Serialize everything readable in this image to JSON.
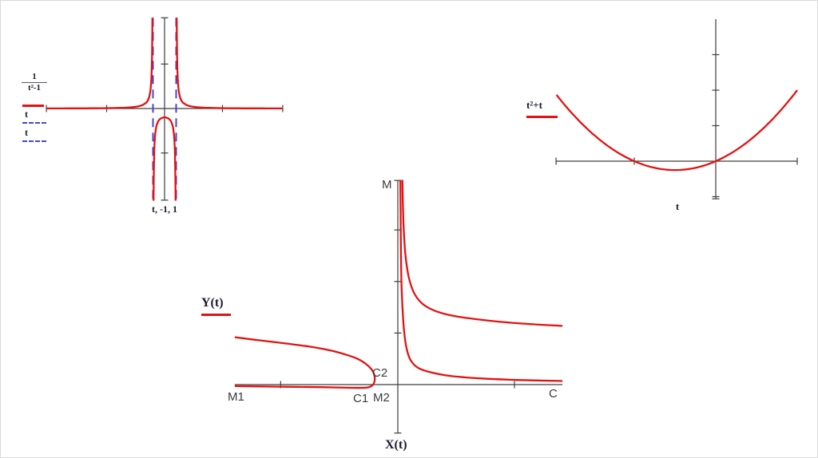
{
  "colors": {
    "curve": "#e31212",
    "asymptote": "#4646cc",
    "axis": "#3d3d3d",
    "math_label": "#1b1b2f",
    "marker_label": "#3a3a3a"
  },
  "plots": {
    "hyperbola": {
      "legend": {
        "numerator": "1",
        "denominator": "t²-1",
        "entry2": "t",
        "entry3": "t"
      },
      "xlabel": "t, -1, 1"
    },
    "parabola": {
      "legend": "t²+t",
      "xlabel": "t"
    },
    "parametric": {
      "legend": "Y(t)",
      "xlabel": "X(t)",
      "markers": {
        "m": "M",
        "m1": "M1",
        "m2": "M2",
        "c": "C",
        "c1": "C1",
        "c2": "C2"
      }
    }
  },
  "chart_data": [
    {
      "id": "hyperbola",
      "type": "line",
      "function": "y = 1/(t²-1)",
      "x_axis_label": "t, -1, 1",
      "x_range": [
        -10.2,
        10.2
      ],
      "y_range": [
        -10.3,
        10.2
      ],
      "x_ticks": [
        -5,
        5
      ],
      "y_ticks": [
        -5,
        5
      ],
      "vertical_asymptotes": [
        -1,
        1
      ],
      "series": [
        {
          "name": "1/(t²-1)",
          "color": "#e31212",
          "style": "solid"
        },
        {
          "name": "t",
          "color": "#4646cc",
          "style": "dashed"
        },
        {
          "name": "t",
          "color": "#4646cc",
          "style": "dashed"
        }
      ],
      "segments": [
        [
          [
            -10.2,
            -1.6,
            30
          ],
          [
            -1.6,
            -1.0478,
            60
          ]
        ],
        [
          [
            -0.9505,
            -0.7,
            40
          ],
          [
            -0.7,
            0.7,
            40
          ],
          [
            0.7,
            0.9505,
            40
          ]
        ],
        [
          [
            1.0478,
            1.6,
            60
          ],
          [
            1.6,
            10.2,
            30
          ]
        ]
      ],
      "grid": false,
      "legend_position": "left"
    },
    {
      "id": "parabola",
      "type": "line",
      "function": "y = t²+t",
      "x_axis_label": "t",
      "x_range": [
        -1.96,
        1.0
      ],
      "y_range": [
        -1.06,
        4.0
      ],
      "x_ticks": [
        -1
      ],
      "y_ticks": [
        -1,
        1,
        2,
        3
      ],
      "roots": [
        -1,
        0
      ],
      "vertex": [
        -0.5,
        -0.25
      ],
      "series": [
        {
          "name": "t²+t",
          "color": "#e31212",
          "style": "solid"
        }
      ],
      "segments": [
        [
          [
            -1.955,
            1.0,
            80
          ]
        ]
      ],
      "grid": false,
      "legend_position": "left"
    },
    {
      "id": "parametric",
      "type": "line",
      "function": "parametric curve (X(t), Y(t))",
      "x_axis_label": "X(t)",
      "y_axis_label": "Y(t)",
      "x_range": [
        -3.16,
        3.19
      ],
      "y_range": [
        -0.94,
        3.96
      ],
      "x_ticks": [
        -2.27,
        2.26
      ],
      "y_ticks": [
        1,
        2,
        3
      ],
      "series": [
        {
          "name": "Y(t)",
          "color": "#e31212",
          "style": "solid"
        }
      ],
      "annotations": [
        "M",
        "M1",
        "M2",
        "C",
        "C1",
        "C2"
      ],
      "branches": [
        {
          "name": "left-loop",
          "points": [
            [
              -3.16,
              -0.03
            ],
            [
              -2.28,
              -0.04
            ],
            [
              -1.5,
              -0.05
            ],
            [
              -0.99,
              -0.06
            ],
            [
              -0.62,
              -0.06
            ],
            [
              -0.5,
              -0.02
            ],
            [
              -0.455,
              0.05
            ],
            [
              -0.448,
              0.14
            ],
            [
              -0.47,
              0.23
            ],
            [
              -0.53,
              0.32
            ],
            [
              -0.63,
              0.41
            ],
            [
              -0.78,
              0.5
            ],
            [
              -0.97,
              0.57
            ],
            [
              -1.25,
              0.65
            ],
            [
              -1.6,
              0.72
            ],
            [
              -2.1,
              0.79
            ],
            [
              -2.7,
              0.86
            ],
            [
              -3.16,
              0.92
            ]
          ]
        },
        {
          "name": "right-upper",
          "points": [
            [
              0.09,
              3.97
            ],
            [
              0.1,
              3.4
            ],
            [
              0.12,
              2.9
            ],
            [
              0.155,
              2.45
            ],
            [
              0.22,
              2.05
            ],
            [
              0.33,
              1.75
            ],
            [
              0.5,
              1.55
            ],
            [
              0.75,
              1.42
            ],
            [
              1.1,
              1.33
            ],
            [
              1.6,
              1.26
            ],
            [
              2.2,
              1.2
            ],
            [
              2.8,
              1.16
            ],
            [
              3.19,
              1.14
            ]
          ]
        },
        {
          "name": "right-lower",
          "points": [
            [
              0.05,
              3.97
            ],
            [
              0.055,
              3.2
            ],
            [
              0.06,
              2.6
            ],
            [
              0.07,
              2.0
            ],
            [
              0.09,
              1.5
            ],
            [
              0.12,
              1.05
            ],
            [
              0.17,
              0.7
            ],
            [
              0.25,
              0.47
            ],
            [
              0.4,
              0.32
            ],
            [
              0.65,
              0.235
            ],
            [
              1.0,
              0.17
            ],
            [
              1.6,
              0.12
            ],
            [
              2.3,
              0.09
            ],
            [
              3.19,
              0.07
            ]
          ]
        }
      ],
      "grid": false,
      "legend_position": "left"
    }
  ]
}
